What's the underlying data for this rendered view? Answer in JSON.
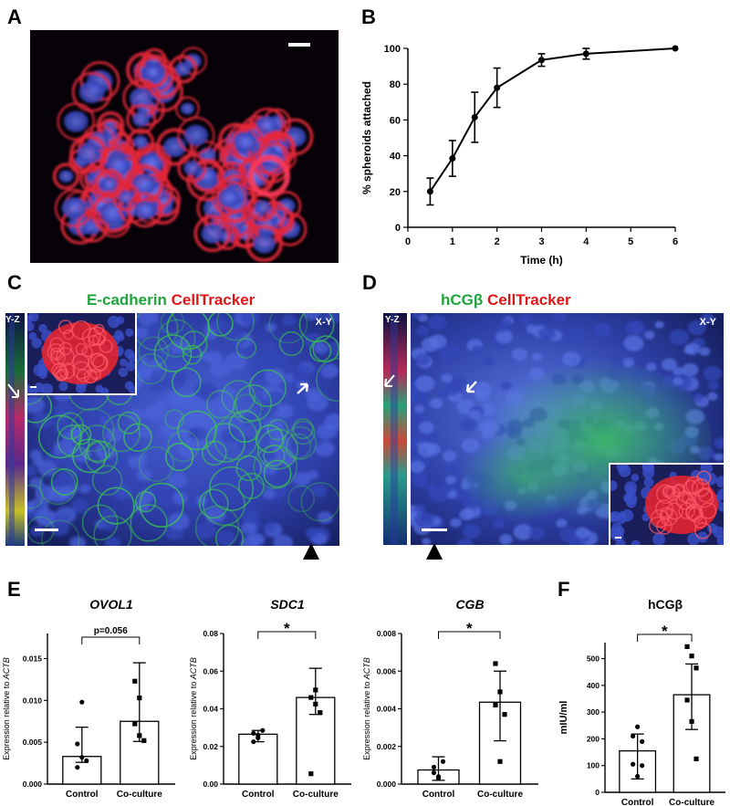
{
  "panels": {
    "a": "A",
    "b": "B",
    "c": "C",
    "d": "D",
    "e": "E",
    "f": "F"
  },
  "panel_c": {
    "stain_1": "E-cadherin",
    "stain_2": "CellTracker",
    "view_yz": "Y-Z",
    "view_xy": "X-Y"
  },
  "panel_d": {
    "stain_1": "hCGβ",
    "stain_2": "CellTracker",
    "view_yz": "Y-Z",
    "view_xy": "X-Y"
  },
  "colors": {
    "nuclei": "#3a4fd6",
    "celltracker": "#e81f2c",
    "ecadherin": "#2fbf3a",
    "label_green": "#1fa53a",
    "label_red": "#e01616"
  },
  "chart_data": [
    {
      "panel": "B",
      "type": "line",
      "x": [
        0.5,
        1,
        1.5,
        2,
        3,
        4,
        6
      ],
      "y": [
        20,
        38.5,
        61.5,
        78,
        93.5,
        97,
        100
      ],
      "yerr": [
        7.5,
        10,
        14,
        11,
        3.5,
        3,
        0
      ],
      "xlabel": "Time (h)",
      "ylabel": "% spheroids attached",
      "xlim": [
        0,
        6
      ],
      "ylim": [
        0,
        100
      ],
      "xticks": [
        "0",
        "1",
        "2",
        "3",
        "4",
        "5",
        "6"
      ],
      "yticks": [
        "0",
        "20",
        "40",
        "60",
        "80",
        "100"
      ],
      "grid": false
    },
    {
      "panel": "E",
      "type": "bar",
      "title": "OVOL1",
      "ylabel_prefix": "Expression relative to ",
      "ylabel_gene": "ACTB",
      "categories": [
        "Control",
        "Co-culture"
      ],
      "values": [
        0.0033,
        0.0075
      ],
      "error_low": [
        0.0026,
        0.0051
      ],
      "error_high": [
        0.0068,
        0.0145
      ],
      "points": [
        [
          0.0048,
          0.0032,
          0.0028,
          0.002,
          0.0098
        ],
        [
          0.0072,
          0.0103,
          0.0052,
          0.0123,
          0.0058
        ]
      ],
      "ylim": [
        0,
        0.018
      ],
      "yticks": [
        "0.000",
        "0.005",
        "0.010",
        "0.015"
      ],
      "significance": "p=0.056"
    },
    {
      "panel": "E",
      "type": "bar",
      "title": "SDC1",
      "ylabel_prefix": "Expression relative to ",
      "ylabel_gene": "ACTB",
      "categories": [
        "Control",
        "Co-culture"
      ],
      "values": [
        0.0265,
        0.046
      ],
      "error_low": [
        0.0225,
        0.037
      ],
      "error_high": [
        0.0285,
        0.0615
      ],
      "points": [
        [
          0.027,
          0.0245,
          0.0285,
          0.0225,
          0.026
        ],
        [
          0.0055,
          0.0425,
          0.038,
          0.046,
          0.05
        ]
      ],
      "ylim": [
        0,
        0.08
      ],
      "yticks": [
        "0.00",
        "0.02",
        "0.04",
        "0.06",
        "0.08"
      ],
      "significance": "*"
    },
    {
      "panel": "E",
      "type": "bar",
      "title": "CGB",
      "ylabel_prefix": "Expression relative to ",
      "ylabel_gene": "ACTB",
      "categories": [
        "Control",
        "Co-culture"
      ],
      "values": [
        0.00075,
        0.00435
      ],
      "error_low": [
        0.0002,
        0.0023
      ],
      "error_high": [
        0.00145,
        0.006
      ],
      "points": [
        [
          0.0009,
          0.0003,
          0.0012,
          0.0006,
          0.0004
        ],
        [
          0.0064,
          0.0049,
          0.0037,
          0.0042,
          0.0012
        ]
      ],
      "ylim": [
        0,
        0.008
      ],
      "yticks": [
        "0.000",
        "0.002",
        "0.004",
        "0.006",
        "0.008"
      ],
      "significance": "*"
    },
    {
      "panel": "F",
      "type": "bar",
      "title": "hCGβ",
      "ylabel": "mIU/ml",
      "categories": [
        "Control",
        "Co-culture"
      ],
      "values": [
        155,
        365
      ],
      "error_low": [
        50,
        235
      ],
      "error_high": [
        218,
        480
      ],
      "points": [
        [
          210,
          245,
          190,
          105,
          60,
          100
        ],
        [
          545,
          510,
          465,
          345,
          265,
          125
        ]
      ],
      "ylim": [
        0,
        560
      ],
      "yticks": [
        "0",
        "100",
        "200",
        "300",
        "400",
        "500"
      ],
      "significance": "*"
    }
  ]
}
